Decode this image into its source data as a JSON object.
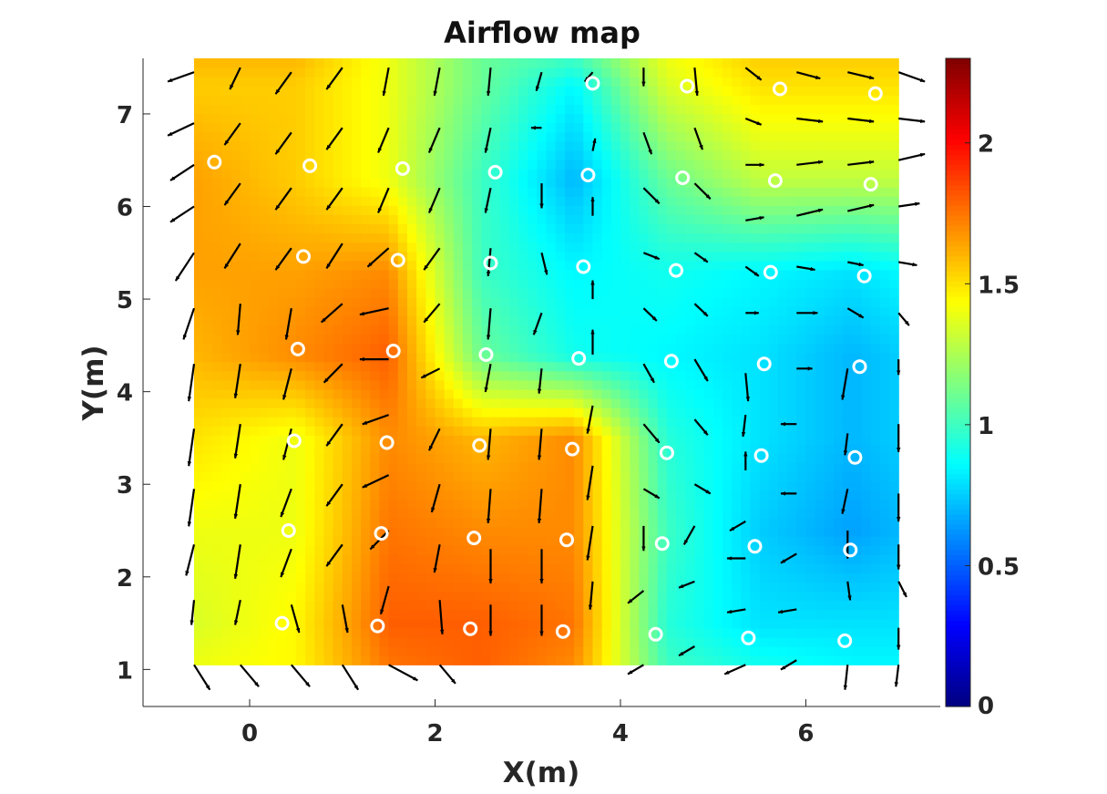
{
  "chart_data": {
    "type": "heatmap",
    "title": "Airflow map",
    "xlabel": "X(m)",
    "ylabel": "Y(m)",
    "xlim": [
      -1.15,
      7.45
    ],
    "ylim": [
      0.6,
      7.6
    ],
    "x_ticks": [
      "0",
      "2",
      "4",
      "6"
    ],
    "y_ticks": [
      "1",
      "2",
      "3",
      "4",
      "5",
      "6",
      "7"
    ],
    "x_tick_values": [
      0,
      2,
      4,
      6
    ],
    "y_tick_values": [
      1,
      2,
      3,
      4,
      5,
      6,
      7
    ],
    "colorbar": {
      "colormap": "jet",
      "range": [
        0,
        2.3
      ],
      "ticks": [
        "0",
        "0.5",
        "1",
        "1.5",
        "2"
      ],
      "tick_values": [
        0,
        0.5,
        1,
        1.5,
        2
      ]
    },
    "field_extent": {
      "x": [
        -0.6,
        7.0
      ],
      "y": [
        1.05,
        7.6
      ]
    },
    "field_grid": {
      "x": [
        -0.6,
        0.5,
        1.5,
        2.5,
        3.5,
        4.5,
        5.5,
        6.5,
        7.0
      ],
      "y": [
        1.05,
        1.5,
        2.5,
        3.5,
        4.4,
        5.3,
        6.3,
        7.3,
        7.6
      ],
      "z": [
        [
          1.4,
          1.45,
          1.75,
          1.8,
          1.7,
          1.0,
          0.9,
          0.85,
          0.85
        ],
        [
          1.35,
          1.45,
          1.8,
          1.8,
          1.75,
          0.95,
          0.8,
          0.8,
          0.8
        ],
        [
          1.4,
          1.4,
          1.75,
          1.7,
          1.7,
          1.0,
          0.75,
          0.65,
          0.7
        ],
        [
          1.5,
          1.4,
          1.7,
          1.6,
          1.7,
          0.95,
          0.8,
          0.7,
          0.75
        ],
        [
          1.6,
          1.7,
          1.8,
          1.1,
          0.9,
          0.85,
          0.8,
          0.7,
          0.75
        ],
        [
          1.65,
          1.65,
          1.7,
          1.0,
          0.85,
          0.9,
          0.85,
          0.8,
          0.85
        ],
        [
          1.65,
          1.55,
          1.4,
          1.0,
          0.7,
          1.1,
          1.3,
          1.3,
          1.3
        ],
        [
          1.55,
          1.55,
          1.4,
          1.1,
          0.85,
          1.35,
          1.5,
          1.5,
          1.5
        ],
        [
          1.6,
          1.6,
          1.4,
          1.1,
          1.0,
          1.4,
          1.55,
          1.55,
          1.55
        ]
      ]
    },
    "sensor_points": [
      [
        0.35,
        1.5
      ],
      [
        1.38,
        1.47
      ],
      [
        2.38,
        1.44
      ],
      [
        3.38,
        1.41
      ],
      [
        4.38,
        1.38
      ],
      [
        5.38,
        1.34
      ],
      [
        6.42,
        1.31
      ],
      [
        0.42,
        2.5
      ],
      [
        1.42,
        2.47
      ],
      [
        2.42,
        2.42
      ],
      [
        3.42,
        2.4
      ],
      [
        4.45,
        2.36
      ],
      [
        5.45,
        2.33
      ],
      [
        6.48,
        2.29
      ],
      [
        0.48,
        3.47
      ],
      [
        1.48,
        3.45
      ],
      [
        2.48,
        3.42
      ],
      [
        3.48,
        3.38
      ],
      [
        4.5,
        3.34
      ],
      [
        5.52,
        3.31
      ],
      [
        6.53,
        3.29
      ],
      [
        0.52,
        4.46
      ],
      [
        1.55,
        4.44
      ],
      [
        2.55,
        4.4
      ],
      [
        3.55,
        4.36
      ],
      [
        4.55,
        4.33
      ],
      [
        5.55,
        4.3
      ],
      [
        6.58,
        4.27
      ],
      [
        0.58,
        5.46
      ],
      [
        1.6,
        5.42
      ],
      [
        2.6,
        5.39
      ],
      [
        3.6,
        5.35
      ],
      [
        4.6,
        5.31
      ],
      [
        5.62,
        5.29
      ],
      [
        6.63,
        5.25
      ],
      [
        -0.38,
        6.48
      ],
      [
        0.65,
        6.44
      ],
      [
        1.65,
        6.41
      ],
      [
        2.65,
        6.37
      ],
      [
        3.65,
        6.34
      ],
      [
        4.67,
        6.31
      ],
      [
        5.67,
        6.28
      ],
      [
        6.7,
        6.24
      ],
      [
        3.7,
        7.33
      ],
      [
        4.72,
        7.3
      ],
      [
        5.72,
        7.27
      ],
      [
        6.75,
        7.22
      ]
    ],
    "arrow_spacing": {
      "dx": 0.54,
      "dy": 0.64
    },
    "arrows": [
      [
        -0.6,
        7.45,
        -0.5,
        -0.15
      ],
      [
        -0.6,
        6.9,
        -0.5,
        -0.2
      ],
      [
        -0.6,
        6.45,
        -0.45,
        -0.25
      ],
      [
        -0.6,
        6.0,
        -0.45,
        -0.25
      ],
      [
        -0.6,
        5.5,
        -0.35,
        -0.45
      ],
      [
        -0.6,
        4.9,
        -0.2,
        -0.5
      ],
      [
        -0.6,
        4.3,
        -0.1,
        -0.6
      ],
      [
        -0.6,
        3.6,
        -0.1,
        -0.6
      ],
      [
        -0.6,
        2.95,
        -0.1,
        -0.6
      ],
      [
        -0.6,
        2.35,
        -0.15,
        -0.5
      ],
      [
        -0.6,
        1.75,
        -0.05,
        -0.4
      ],
      [
        -0.6,
        1.05,
        0.3,
        -0.4
      ],
      [
        -0.1,
        7.5,
        -0.2,
        -0.35
      ],
      [
        -0.1,
        6.9,
        -0.3,
        -0.35
      ],
      [
        -0.1,
        6.25,
        -0.3,
        -0.35
      ],
      [
        -0.1,
        5.6,
        -0.3,
        -0.4
      ],
      [
        -0.1,
        4.95,
        -0.05,
        -0.5
      ],
      [
        -0.1,
        4.3,
        -0.1,
        -0.55
      ],
      [
        -0.1,
        3.65,
        -0.1,
        -0.55
      ],
      [
        -0.1,
        3.0,
        -0.1,
        -0.55
      ],
      [
        -0.1,
        2.35,
        -0.1,
        -0.55
      ],
      [
        -0.1,
        1.75,
        -0.1,
        -0.4
      ],
      [
        -0.1,
        1.05,
        0.35,
        -0.35
      ],
      [
        0.45,
        7.45,
        -0.3,
        -0.35
      ],
      [
        0.45,
        6.8,
        -0.3,
        -0.35
      ],
      [
        0.45,
        6.2,
        -0.3,
        -0.35
      ],
      [
        0.45,
        5.55,
        -0.3,
        -0.35
      ],
      [
        0.45,
        4.9,
        -0.1,
        -0.5
      ],
      [
        0.45,
        4.25,
        -0.15,
        -0.5
      ],
      [
        0.45,
        3.6,
        -0.15,
        -0.5
      ],
      [
        0.45,
        2.95,
        -0.2,
        -0.45
      ],
      [
        0.45,
        2.3,
        -0.2,
        -0.45
      ],
      [
        0.45,
        1.7,
        0.15,
        -0.45
      ],
      [
        0.45,
        1.05,
        0.35,
        -0.35
      ],
      [
        1.0,
        7.5,
        -0.3,
        -0.35
      ],
      [
        1.0,
        6.85,
        -0.3,
        -0.35
      ],
      [
        1.0,
        6.2,
        -0.3,
        -0.35
      ],
      [
        1.0,
        5.6,
        -0.3,
        -0.4
      ],
      [
        1.0,
        4.95,
        -0.4,
        -0.3
      ],
      [
        1.0,
        4.3,
        -0.35,
        -0.3
      ],
      [
        1.0,
        3.65,
        -0.3,
        -0.35
      ],
      [
        1.0,
        3.0,
        -0.3,
        -0.35
      ],
      [
        1.0,
        2.35,
        -0.3,
        -0.35
      ],
      [
        1.0,
        1.7,
        0.1,
        -0.45
      ],
      [
        1.0,
        1.05,
        0.3,
        -0.4
      ],
      [
        1.5,
        7.5,
        -0.1,
        -0.45
      ],
      [
        1.5,
        6.85,
        -0.2,
        -0.4
      ],
      [
        1.5,
        6.2,
        -0.2,
        -0.4
      ],
      [
        1.5,
        5.55,
        -0.4,
        -0.3
      ],
      [
        1.5,
        4.9,
        -0.55,
        -0.1
      ],
      [
        1.5,
        4.35,
        -0.55,
        0.0
      ],
      [
        1.5,
        3.75,
        -0.5,
        -0.15
      ],
      [
        1.5,
        3.1,
        -0.5,
        -0.2
      ],
      [
        1.5,
        2.5,
        -0.35,
        -0.3
      ],
      [
        1.5,
        1.9,
        -0.15,
        -0.45
      ],
      [
        1.5,
        1.05,
        0.55,
        -0.25
      ],
      [
        2.05,
        7.5,
        -0.1,
        -0.45
      ],
      [
        2.05,
        6.85,
        -0.2,
        -0.4
      ],
      [
        2.05,
        6.2,
        -0.2,
        -0.4
      ],
      [
        2.05,
        5.55,
        -0.3,
        -0.35
      ],
      [
        2.05,
        4.95,
        -0.3,
        -0.3
      ],
      [
        2.05,
        4.25,
        -0.35,
        -0.15
      ],
      [
        2.05,
        3.6,
        -0.2,
        -0.35
      ],
      [
        2.05,
        3.0,
        -0.15,
        -0.45
      ],
      [
        2.05,
        2.35,
        -0.1,
        -0.45
      ],
      [
        2.05,
        1.75,
        0.05,
        -0.55
      ],
      [
        2.05,
        1.05,
        0.3,
        -0.3
      ],
      [
        2.6,
        7.5,
        -0.05,
        -0.45
      ],
      [
        2.6,
        6.85,
        -0.1,
        -0.4
      ],
      [
        2.6,
        6.2,
        -0.1,
        -0.4
      ],
      [
        2.6,
        5.55,
        -0.05,
        -0.45
      ],
      [
        2.6,
        4.9,
        -0.05,
        -0.5
      ],
      [
        2.6,
        4.3,
        -0.1,
        -0.45
      ],
      [
        2.6,
        3.6,
        -0.05,
        -0.5
      ],
      [
        2.6,
        2.95,
        -0.05,
        -0.55
      ],
      [
        2.6,
        2.3,
        0.0,
        -0.55
      ],
      [
        2.6,
        1.7,
        0.0,
        -0.5
      ],
      [
        3.15,
        7.45,
        -0.1,
        -0.3
      ],
      [
        3.15,
        6.85,
        -0.2,
        0.0
      ],
      [
        3.15,
        6.25,
        0.0,
        -0.4
      ],
      [
        3.15,
        5.5,
        0.1,
        -0.35
      ],
      [
        3.15,
        4.85,
        -0.15,
        -0.35
      ],
      [
        3.15,
        4.25,
        -0.05,
        -0.4
      ],
      [
        3.15,
        3.6,
        -0.05,
        -0.5
      ],
      [
        3.15,
        2.95,
        -0.05,
        -0.55
      ],
      [
        3.15,
        2.3,
        0.0,
        -0.55
      ],
      [
        3.15,
        1.7,
        0.0,
        -0.5
      ],
      [
        3.7,
        7.45,
        -0.15,
        -0.15
      ],
      [
        3.7,
        6.6,
        0.05,
        0.2
      ],
      [
        3.7,
        5.9,
        0.0,
        0.3
      ],
      [
        3.7,
        5.0,
        0.0,
        0.3
      ],
      [
        3.7,
        4.4,
        0.0,
        0.4
      ],
      [
        3.7,
        3.85,
        -0.1,
        -0.45
      ],
      [
        3.7,
        3.2,
        -0.1,
        -0.55
      ],
      [
        3.7,
        2.55,
        -0.1,
        -0.55
      ],
      [
        3.7,
        1.95,
        -0.05,
        -0.45
      ],
      [
        4.25,
        7.5,
        0.0,
        -0.3
      ],
      [
        4.25,
        6.8,
        0.15,
        -0.35
      ],
      [
        4.25,
        6.2,
        0.3,
        -0.25
      ],
      [
        4.25,
        5.5,
        0.3,
        -0.1
      ],
      [
        4.25,
        4.9,
        0.25,
        -0.2
      ],
      [
        4.25,
        4.3,
        0.2,
        -0.3
      ],
      [
        4.25,
        3.65,
        0.3,
        -0.3
      ],
      [
        4.25,
        2.95,
        0.3,
        -0.15
      ],
      [
        4.25,
        2.55,
        0.0,
        -0.4
      ],
      [
        4.25,
        1.85,
        -0.3,
        -0.2
      ],
      [
        4.25,
        1.05,
        -0.3,
        -0.15
      ],
      [
        4.8,
        7.5,
        0.05,
        -0.45
      ],
      [
        4.8,
        6.85,
        0.15,
        -0.35
      ],
      [
        4.8,
        6.25,
        0.3,
        -0.25
      ],
      [
        4.8,
        5.5,
        0.25,
        -0.15
      ],
      [
        4.8,
        4.95,
        0.25,
        -0.2
      ],
      [
        4.8,
        4.35,
        0.25,
        -0.35
      ],
      [
        4.8,
        3.7,
        0.25,
        -0.25
      ],
      [
        4.8,
        3.0,
        0.3,
        -0.15
      ],
      [
        4.8,
        2.55,
        -0.2,
        -0.3
      ],
      [
        4.8,
        1.95,
        -0.3,
        -0.1
      ],
      [
        4.8,
        1.25,
        -0.3,
        -0.15
      ],
      [
        5.35,
        7.5,
        0.3,
        -0.2
      ],
      [
        5.35,
        6.95,
        0.3,
        -0.1
      ],
      [
        5.35,
        6.45,
        0.35,
        0.0
      ],
      [
        5.35,
        5.85,
        0.35,
        0.05
      ],
      [
        5.35,
        5.35,
        0.25,
        -0.15
      ],
      [
        5.35,
        4.85,
        0.25,
        0.0
      ],
      [
        5.35,
        4.2,
        0.05,
        -0.45
      ],
      [
        5.35,
        3.75,
        -0.05,
        -0.35
      ],
      [
        5.35,
        3.15,
        0.0,
        0.3
      ],
      [
        5.35,
        2.6,
        -0.3,
        -0.15
      ],
      [
        5.35,
        2.2,
        -0.35,
        0.0
      ],
      [
        5.35,
        1.65,
        -0.35,
        -0.05
      ],
      [
        5.35,
        1.05,
        -0.4,
        -0.15
      ],
      [
        5.9,
        7.45,
        0.45,
        -0.1
      ],
      [
        5.9,
        6.95,
        0.5,
        -0.05
      ],
      [
        5.9,
        6.45,
        0.5,
        0.05
      ],
      [
        5.9,
        5.9,
        0.5,
        0.1
      ],
      [
        5.9,
        5.35,
        0.35,
        -0.05
      ],
      [
        5.9,
        4.85,
        0.4,
        0.0
      ],
      [
        5.9,
        4.25,
        0.3,
        0.0
      ],
      [
        5.9,
        3.65,
        -0.3,
        0.0
      ],
      [
        5.9,
        2.9,
        -0.3,
        0.0
      ],
      [
        5.9,
        2.25,
        -0.3,
        -0.15
      ],
      [
        5.9,
        1.65,
        -0.35,
        -0.05
      ],
      [
        5.9,
        1.1,
        -0.3,
        -0.15
      ],
      [
        6.45,
        7.45,
        0.5,
        -0.1
      ],
      [
        6.45,
        6.95,
        0.5,
        -0.05
      ],
      [
        6.45,
        6.45,
        0.5,
        0.05
      ],
      [
        6.45,
        5.95,
        0.5,
        0.1
      ],
      [
        6.45,
        5.4,
        0.3,
        -0.05
      ],
      [
        6.45,
        4.9,
        0.3,
        -0.15
      ],
      [
        6.45,
        4.25,
        -0.1,
        -0.5
      ],
      [
        6.45,
        3.55,
        -0.05,
        -0.35
      ],
      [
        6.45,
        2.95,
        -0.1,
        -0.4
      ],
      [
        6.45,
        2.5,
        0.0,
        -0.45
      ],
      [
        6.45,
        1.95,
        0.05,
        -0.3
      ],
      [
        6.45,
        1.05,
        -0.05,
        -0.4
      ],
      [
        7.0,
        7.45,
        0.5,
        -0.15
      ],
      [
        7.0,
        6.95,
        0.5,
        -0.05
      ],
      [
        7.0,
        6.5,
        0.5,
        0.1
      ],
      [
        7.0,
        6.0,
        0.4,
        0.05
      ],
      [
        7.0,
        5.4,
        0.35,
        -0.05
      ],
      [
        7.0,
        4.85,
        0.2,
        -0.2
      ],
      [
        7.0,
        4.35,
        0.0,
        -0.25
      ],
      [
        7.0,
        3.65,
        0.0,
        -0.45
      ],
      [
        7.0,
        2.9,
        0.0,
        -0.45
      ],
      [
        7.0,
        2.35,
        0.0,
        -0.4
      ],
      [
        7.0,
        1.95,
        0.15,
        -0.25
      ],
      [
        7.0,
        1.45,
        0.0,
        -0.35
      ],
      [
        7.0,
        1.05,
        -0.05,
        -0.35
      ]
    ]
  }
}
